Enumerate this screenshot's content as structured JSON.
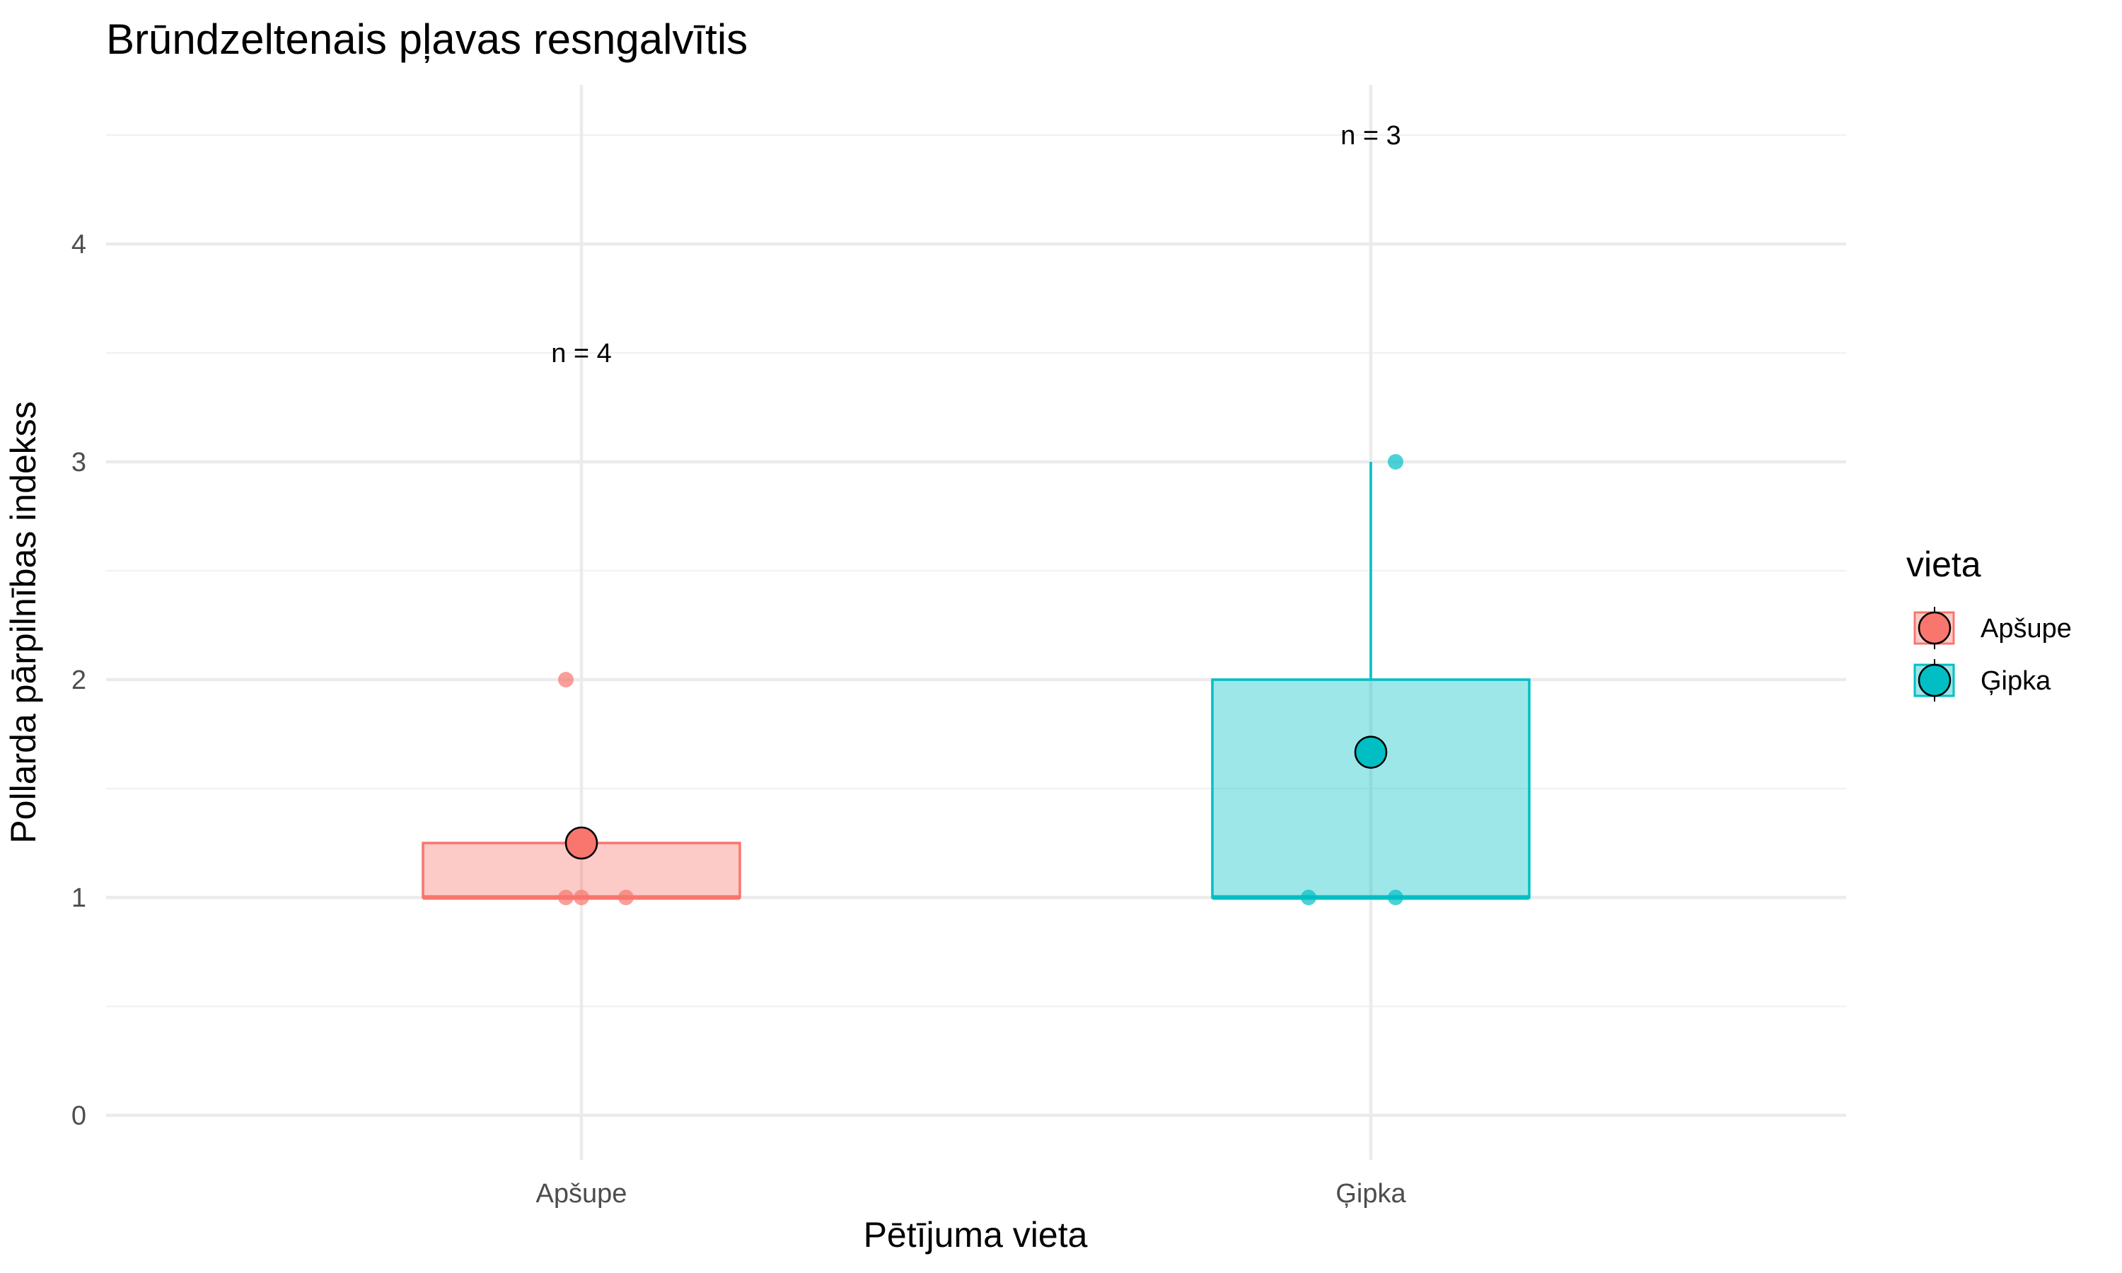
{
  "chart_data": {
    "type": "box",
    "title": "Brūndzeltenais pļavas resngalvītis",
    "xlabel": "Pētījuma vieta",
    "ylabel": "Pollarda pārpilnības indekss",
    "ylim": [
      -0.2,
      4.73
    ],
    "yticks": [
      0,
      1,
      2,
      3,
      4
    ],
    "grid": true,
    "legend": {
      "title": "vieta",
      "position": "right",
      "entries": [
        {
          "label": "Apšupe",
          "color": "#F8766D"
        },
        {
          "label": "Ģipka",
          "color": "#00BFC4"
        }
      ]
    },
    "categories": [
      "Apšupe",
      "Ģipka"
    ],
    "groups": [
      {
        "name": "Apšupe",
        "color": "#F8766D",
        "points": [
          1,
          1,
          1,
          2
        ],
        "q1": 1,
        "median": 1,
        "q3": 1.25,
        "whisker_low": 1,
        "whisker_high": 1.25,
        "mean": 1.25,
        "n_label": "n = 4",
        "n_label_y": 3.5
      },
      {
        "name": "Ģipka",
        "color": "#00BFC4",
        "points": [
          1,
          1,
          3
        ],
        "q1": 1,
        "median": 1,
        "q3": 2,
        "whisker_low": 1,
        "whisker_high": 3,
        "mean": 1.667,
        "n_label": "n = 3",
        "n_label_y": 4.5
      }
    ]
  }
}
